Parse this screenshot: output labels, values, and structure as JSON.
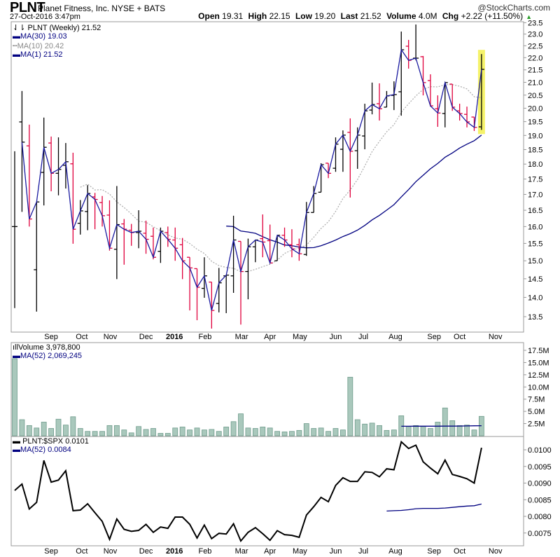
{
  "header": {
    "ticker": "PLNT",
    "company": "Planet Fitness, Inc. NYSE + BATS",
    "brand": "@StockCharts.com",
    "datetime": "27-Oct-2016 3:47pm",
    "open_label": "Open",
    "open": "19.31",
    "high_label": "High",
    "high": "22.15",
    "low_label": "Low",
    "low": "19.20",
    "last_label": "Last",
    "last": "21.52",
    "volume_label": "Volume",
    "volume": "4.0M",
    "chg_label": "Chg",
    "chg": "+2.22 (+11.50%)",
    "chg_icon": "up-triangle-icon"
  },
  "legend": {
    "price": "PLNT (Weekly) 21.52",
    "ma30": "MA(30) 19.03",
    "ma10": "MA(10) 20.42",
    "ma1": "MA(1) 21.52",
    "volume": "Volume 3,978,800",
    "vol_ma": "MA(52) 2,069,245",
    "ratio": "PLNT:$SPX 0.0101",
    "ratio_ma": "MA(52) 0.0084"
  },
  "colors": {
    "up": "#000000",
    "down": "#e0003c",
    "ma": "#000080",
    "ma10": "#999999",
    "volume_fill": "#a9c8bc",
    "volume_edge": "#6f9c8c",
    "highlight": "#f5f26a"
  },
  "chart_data": {
    "type": "ohlc",
    "title": "PLNT (Weekly)",
    "price": {
      "scale": "log",
      "ylim": [
        13.2,
        23.8
      ],
      "yticks": [
        "13.5",
        "14.0",
        "14.5",
        "15.0",
        "15.5",
        "16.0",
        "16.5",
        "17.0",
        "17.5",
        "18.0",
        "18.5",
        "19.0",
        "19.5",
        "20.0",
        "20.5",
        "21.0",
        "21.5",
        "22.0",
        "22.5",
        "23.0",
        "23.5"
      ],
      "ma_periods": [
        30,
        10,
        1
      ],
      "bars_ohlc": [
        [
          16.0,
          18.44,
          13.72,
          16.0
        ],
        [
          19.49,
          20.66,
          16.45,
          18.76
        ],
        [
          18.63,
          19.39,
          16.0,
          16.23
        ],
        [
          14.75,
          16.76,
          13.63,
          16.76
        ],
        [
          17.72,
          19.65,
          16.65,
          18.58
        ],
        [
          18.73,
          18.96,
          17.1,
          17.69
        ],
        [
          17.69,
          18.93,
          16.97,
          17.82
        ],
        [
          17.96,
          18.73,
          17.19,
          18.08
        ],
        [
          18.01,
          18.39,
          15.49,
          15.92
        ],
        [
          16.1,
          16.82,
          15.76,
          16.48
        ],
        [
          16.46,
          17.3,
          15.89,
          17.03
        ],
        [
          16.92,
          17.05,
          15.92,
          16.84
        ],
        [
          16.74,
          16.95,
          16.0,
          16.33
        ],
        [
          16.35,
          16.81,
          15.29,
          15.36
        ],
        [
          15.33,
          17.27,
          14.49,
          16.06
        ],
        [
          16.08,
          16.23,
          14.89,
          15.92
        ],
        [
          15.89,
          16.08,
          15.43,
          15.82
        ],
        [
          15.82,
          16.5,
          15.36,
          15.86
        ],
        [
          15.8,
          16.18,
          15.2,
          15.62
        ],
        [
          15.71,
          15.97,
          15.04,
          15.1
        ],
        [
          15.27,
          15.97,
          14.94,
          15.86
        ],
        [
          15.82,
          16.0,
          15.4,
          15.62
        ],
        [
          15.6,
          15.97,
          15.0,
          15.36
        ],
        [
          15.46,
          15.66,
          14.49,
          15.0
        ],
        [
          15.1,
          15.1,
          13.66,
          14.8
        ],
        [
          14.78,
          14.78,
          13.41,
          14.27
        ],
        [
          14.24,
          15.1,
          13.99,
          14.58
        ],
        [
          14.41,
          14.41,
          13.2,
          13.66
        ],
        [
          13.84,
          14.8,
          13.61,
          14.39
        ],
        [
          14.58,
          14.6,
          13.59,
          14.6
        ],
        [
          14.58,
          16.33,
          14.12,
          15.6
        ],
        [
          15.56,
          15.56,
          13.3,
          14.7
        ],
        [
          14.7,
          15.64,
          13.95,
          15.4
        ],
        [
          15.4,
          15.6,
          14.96,
          15.6
        ],
        [
          15.64,
          16.37,
          15.1,
          15.54
        ],
        [
          15.58,
          16.06,
          14.92,
          14.94
        ],
        [
          15.0,
          15.74,
          15.0,
          15.74
        ],
        [
          15.74,
          15.97,
          15.4,
          15.6
        ],
        [
          15.46,
          15.92,
          15.1,
          15.34
        ],
        [
          15.46,
          15.64,
          15.0,
          15.2
        ],
        [
          15.18,
          16.76,
          15.14,
          16.43
        ],
        [
          16.43,
          17.27,
          16.43,
          17.03
        ],
        [
          17.07,
          18.03,
          17.07,
          17.98
        ],
        [
          18.03,
          18.03,
          17.53,
          17.69
        ],
        [
          17.86,
          18.93,
          17.74,
          18.69
        ],
        [
          18.51,
          19.18,
          17.74,
          19.01
        ],
        [
          19.11,
          19.62,
          16.9,
          18.44
        ],
        [
          18.46,
          19.29,
          17.84,
          19.01
        ],
        [
          18.98,
          20.17,
          18.51,
          19.9
        ],
        [
          19.93,
          20.99,
          19.77,
          20.14
        ],
        [
          20.17,
          20.96,
          19.54,
          19.98
        ],
        [
          20.04,
          20.66,
          20.04,
          20.47
        ],
        [
          20.49,
          21.04,
          19.93,
          20.52
        ],
        [
          20.63,
          23.11,
          19.72,
          22.33
        ],
        [
          22.48,
          22.75,
          21.55,
          21.89
        ],
        [
          21.98,
          23.42,
          21.89,
          21.98
        ],
        [
          22.04,
          22.07,
          20.49,
          20.99
        ],
        [
          21.07,
          21.32,
          20.06,
          20.09
        ],
        [
          19.98,
          20.49,
          19.31,
          19.82
        ],
        [
          19.8,
          20.99,
          19.29,
          20.99
        ],
        [
          20.93,
          20.93,
          19.9,
          20.04
        ],
        [
          19.9,
          20.17,
          19.54,
          19.8
        ],
        [
          19.77,
          20.06,
          19.29,
          19.49
        ],
        [
          19.67,
          19.67,
          19.16,
          19.29
        ],
        [
          19.31,
          22.15,
          19.2,
          21.52
        ]
      ],
      "highlight_last": true
    },
    "volume": {
      "unit": "M",
      "ylim": [
        0,
        17.5
      ],
      "yticks": [
        "2.5M",
        "5.0M",
        "7.5M",
        "10.0M",
        "12.5M",
        "15.0M",
        "17.5M"
      ],
      "values": [
        15.8,
        3.3,
        2.1,
        1.6,
        2.8,
        1.5,
        3.4,
        2.2,
        3.9,
        1.5,
        0.9,
        0.9,
        0.9,
        2.1,
        2.1,
        1.2,
        0.6,
        1.9,
        1.3,
        1.5,
        0.5,
        0.5,
        1.6,
        1.8,
        1.2,
        1.6,
        1.2,
        1.3,
        0.9,
        1.8,
        2.9,
        4.5,
        1.6,
        1.5,
        1.8,
        1.6,
        0.9,
        0.8,
        0.9,
        1.1,
        2.5,
        1.5,
        1.6,
        0.9,
        1.5,
        1.2,
        12.0,
        3.3,
        2.4,
        2.6,
        2.1,
        1.1,
        1.2,
        4.1,
        1.9,
        2.1,
        1.9,
        1.5,
        2.8,
        5.7,
        3.1,
        2.1,
        2.2,
        1.2,
        3.98
      ],
      "ma52_start_week": 53,
      "ma52": [
        1.95,
        1.95,
        1.97,
        1.97,
        1.97,
        1.97,
        1.98,
        1.98,
        2.0,
        2.02,
        2.05,
        2.07
      ]
    },
    "ratio": {
      "ylim": [
        0.0072,
        0.01035
      ],
      "yticks": [
        "0.0075",
        "0.0080",
        "0.0085",
        "0.0090",
        "0.0095",
        "0.0100"
      ],
      "values": [
        0.00878,
        0.00897,
        0.00822,
        0.00842,
        0.00968,
        0.00903,
        0.00909,
        0.00937,
        0.00817,
        0.00819,
        0.00838,
        0.00811,
        0.00785,
        0.00731,
        0.00792,
        0.00761,
        0.00755,
        0.00758,
        0.00776,
        0.00752,
        0.00768,
        0.00764,
        0.00798,
        0.00798,
        0.00776,
        0.00735,
        0.00774,
        0.00733,
        0.00749,
        0.00747,
        0.00778,
        0.00726,
        0.00752,
        0.00766,
        0.00748,
        0.00728,
        0.00757,
        0.00745,
        0.00743,
        0.00737,
        0.00804,
        0.00829,
        0.00857,
        0.00844,
        0.00893,
        0.00916,
        0.00905,
        0.00905,
        0.00934,
        0.00932,
        0.00919,
        0.00943,
        0.0094,
        0.01024,
        0.01004,
        0.01014,
        0.00964,
        0.00945,
        0.00928,
        0.00969,
        0.00926,
        0.0092,
        0.00913,
        0.009,
        0.01006
      ],
      "ma52_start_week": 51,
      "ma52": [
        0.00816,
        0.00817,
        0.00818,
        0.0082,
        0.00823,
        0.00824,
        0.00824,
        0.00824,
        0.00825,
        0.00827,
        0.00829,
        0.00831,
        0.00832,
        0.00837
      ]
    },
    "x_months": [
      {
        "label": "Sep",
        "week": 5.0
      },
      {
        "label": "Oct",
        "week": 9.2
      },
      {
        "label": "Nov",
        "week": 13.1
      },
      {
        "label": "Dec",
        "week": 18.0
      },
      {
        "label": "2016",
        "week": 21.9,
        "bold": true
      },
      {
        "label": "Feb",
        "week": 26.1
      },
      {
        "label": "Mar",
        "week": 31.1
      },
      {
        "label": "Apr",
        "week": 35.0
      },
      {
        "label": "May",
        "week": 39.1
      },
      {
        "label": "Jun",
        "week": 44.0
      },
      {
        "label": "Jul",
        "week": 47.8
      },
      {
        "label": "Aug",
        "week": 52.2
      },
      {
        "label": "Sep",
        "week": 57.5
      },
      {
        "label": "Oct",
        "week": 61.0
      },
      {
        "label": "Nov",
        "week": 65.9
      }
    ]
  }
}
